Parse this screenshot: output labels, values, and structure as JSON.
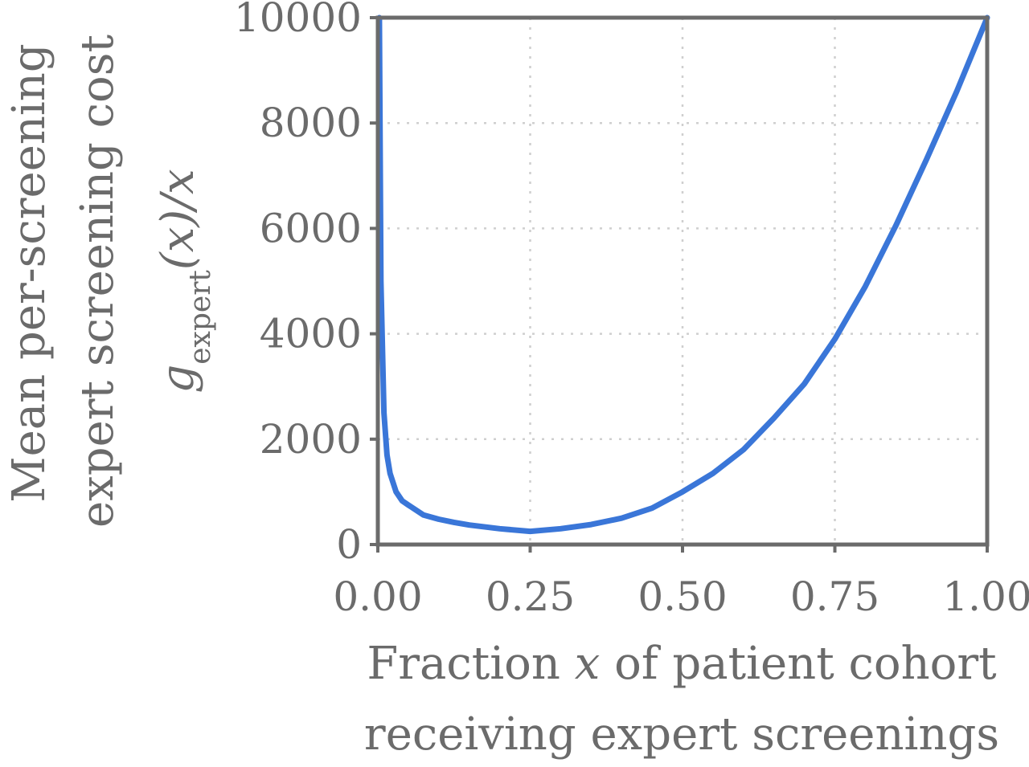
{
  "chart_data": {
    "type": "line",
    "title": "",
    "xlabel": {
      "line1_pre": "Fraction ",
      "line1_var": "x",
      "line1_post": " of patient cohort",
      "line2": "receiving expert screenings"
    },
    "ylabel": {
      "line1": "Mean per-screening",
      "line2": "expert screening cost",
      "line3_g": "g",
      "line3_sub": "expert",
      "line3_rest": "(x)/x"
    },
    "xlim": [
      0.0,
      1.0
    ],
    "ylim": [
      0,
      10000
    ],
    "xticks": [
      0.0,
      0.25,
      0.5,
      0.75,
      1.0
    ],
    "xtick_labels": [
      "0.00",
      "0.25",
      "0.50",
      "0.75",
      "1.00"
    ],
    "yticks": [
      0,
      2000,
      4000,
      6000,
      8000,
      10000
    ],
    "ytick_labels": [
      "0",
      "2000",
      "4000",
      "6000",
      "8000",
      "10000"
    ],
    "grid": true,
    "legend": "none",
    "series": [
      {
        "color": "#3a76d8",
        "x": [
          0.0025,
          0.005,
          0.01,
          0.015,
          0.02,
          0.03,
          0.04,
          0.05,
          0.075,
          0.1,
          0.125,
          0.15,
          0.2,
          0.25,
          0.3,
          0.35,
          0.4,
          0.45,
          0.5,
          0.55,
          0.6,
          0.65,
          0.7,
          0.75,
          0.8,
          0.85,
          0.9,
          0.95,
          1.0
        ],
        "y": [
          10000,
          5000,
          2500,
          1700,
          1350,
          1000,
          830,
          750,
          560,
          480,
          420,
          370,
          300,
          250,
          300,
          380,
          500,
          690,
          1000,
          1350,
          1800,
          2400,
          3050,
          3900,
          4900,
          6050,
          7300,
          8600,
          10000
        ]
      }
    ]
  }
}
